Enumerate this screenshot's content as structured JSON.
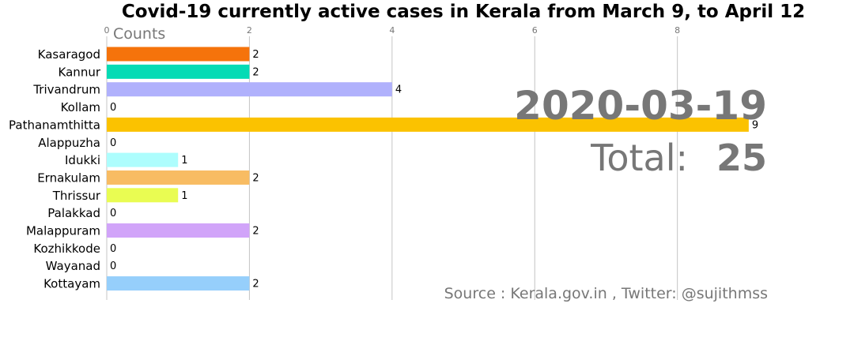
{
  "chart_data": {
    "type": "bar",
    "orientation": "horizontal",
    "title": "Covid-19 currently active cases in Kerala from March 9, to April 12",
    "xlabel": "Counts",
    "x_ticks": [
      0,
      2,
      4,
      6,
      8
    ],
    "xlim": [
      0,
      9.6
    ],
    "grid": true,
    "categories": [
      "Kasaragod",
      "Kannur",
      "Trivandrum",
      "Kollam",
      "Pathanamthitta",
      "Alappuzha",
      "Idukki",
      "Ernakulam",
      "Thrissur",
      "Palakkad",
      "Malappuram",
      "Kozhikkode",
      "Wayanad",
      "Kottayam"
    ],
    "values": [
      2,
      2,
      4,
      0,
      9,
      0,
      1,
      2,
      1,
      0,
      2,
      0,
      0,
      2
    ],
    "colors": [
      "#f5730b",
      "#05dbb5",
      "#b0b1fc",
      "#cccccc",
      "#fbc200",
      "#cccccc",
      "#adfdfd",
      "#f8bc63",
      "#e9fc52",
      "#cccccc",
      "#d1a4f9",
      "#cccccc",
      "#cccccc",
      "#96cffb"
    ],
    "annotations": {
      "date": "2020-03-19",
      "total_label": "Total:",
      "total_value": "25",
      "source": "Source : Kerala.gov.in , Twitter: @sujithmss"
    }
  }
}
